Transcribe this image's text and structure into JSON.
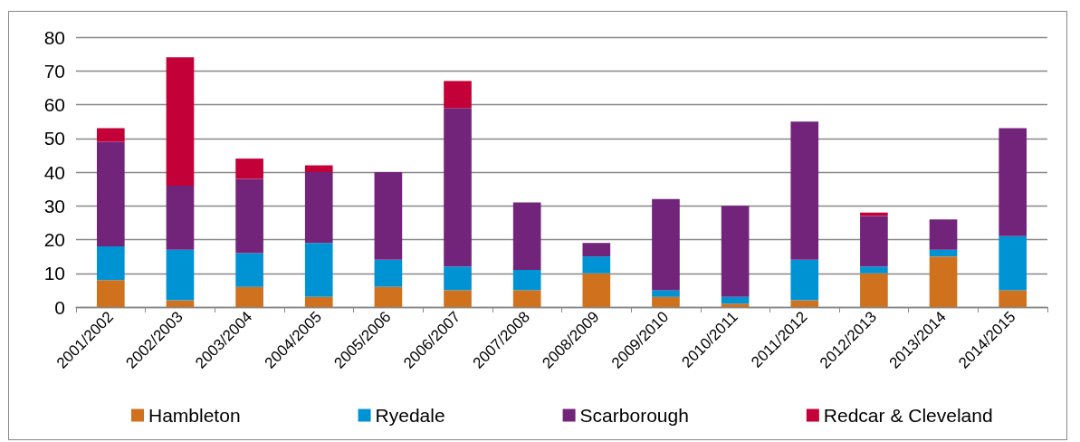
{
  "chart_data": {
    "type": "bar",
    "stacked": true,
    "categories": [
      "2001/2002",
      "2002/2003",
      "2003/2004",
      "2004/2005",
      "2005/2006",
      "2006/2007",
      "2007/2008",
      "2008/2009",
      "2009/2010",
      "2010/2011",
      "2011/2012",
      "2012/2013",
      "2013/2014",
      "2014/2015"
    ],
    "series": [
      {
        "name": "Hambleton",
        "color": "#d0711e",
        "values": [
          8,
          2,
          6,
          3,
          6,
          5,
          5,
          10,
          3,
          1,
          2,
          10,
          15,
          5
        ]
      },
      {
        "name": "Ryedale",
        "color": "#0093d4",
        "values": [
          10,
          15,
          10,
          16,
          8,
          7,
          6,
          5,
          2,
          2,
          12,
          2,
          2,
          16
        ]
      },
      {
        "name": "Scarborough",
        "color": "#72247a",
        "values": [
          31,
          19,
          22,
          21,
          26,
          47,
          20,
          4,
          27,
          27,
          41,
          15,
          9,
          32
        ]
      },
      {
        "name": "Redcar & Cleveland",
        "color": "#c30037",
        "values": [
          4,
          38,
          6,
          2,
          0,
          8,
          0,
          0,
          0,
          0,
          0,
          1,
          0,
          0
        ]
      }
    ],
    "ylim": [
      0,
      80
    ],
    "yticks": [
      0,
      10,
      20,
      30,
      40,
      50,
      60,
      70,
      80
    ],
    "grid": "y",
    "legend": "bottom"
  }
}
